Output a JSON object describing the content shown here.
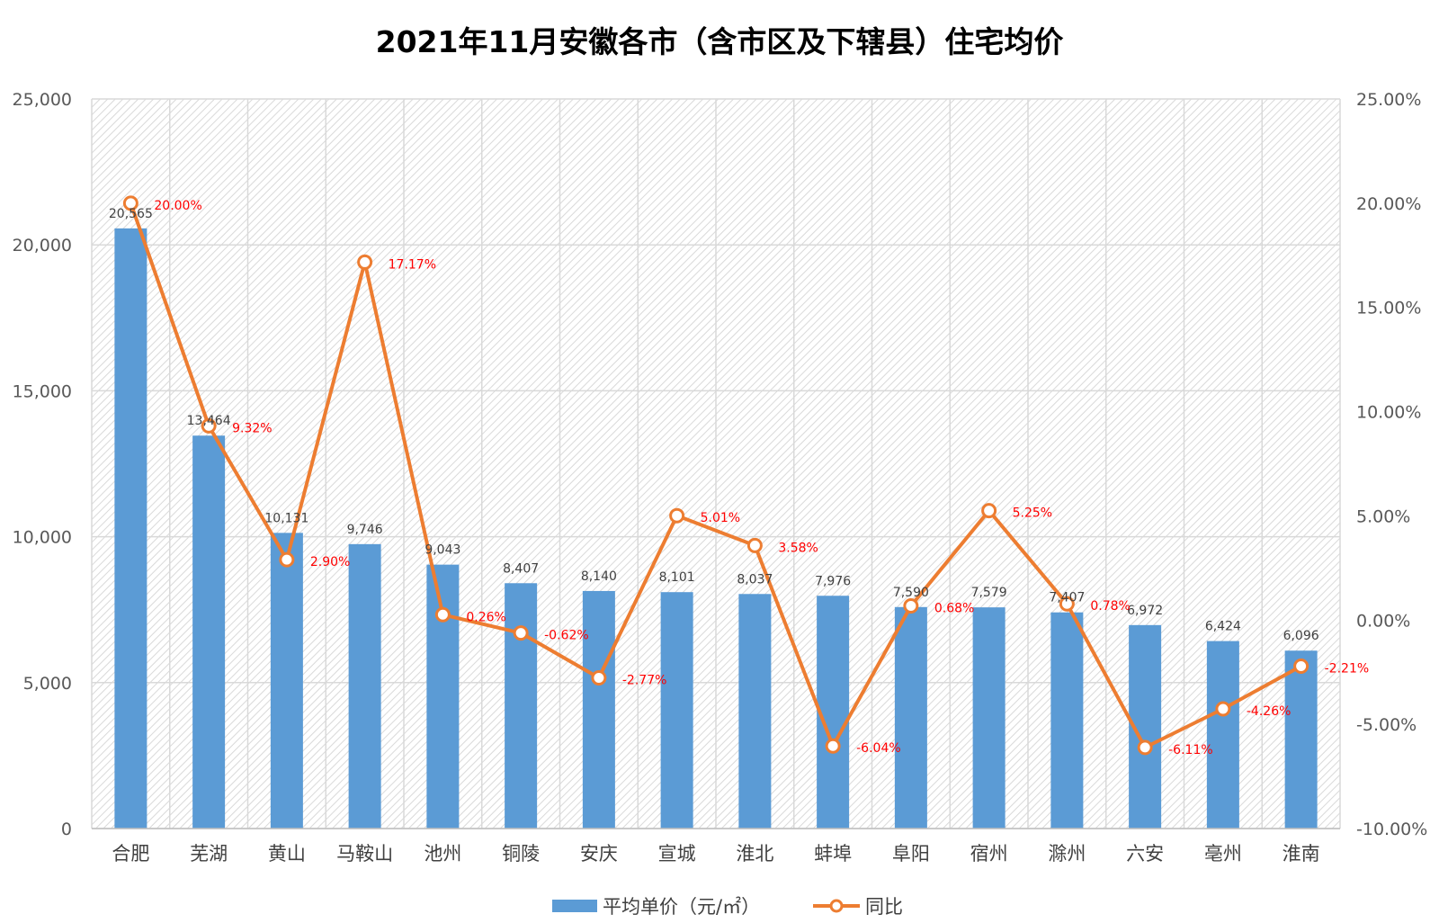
{
  "chart_data": {
    "type": "bar",
    "title": "2021年11月安徽各市（含市区及下辖县）住宅均价",
    "categories": [
      "合肥",
      "芜湖",
      "黄山",
      "马鞍山",
      "池州",
      "铜陵",
      "安庆",
      "宣城",
      "淮北",
      "蚌埠",
      "阜阳",
      "宿州",
      "滁州",
      "六安",
      "亳州",
      "淮南"
    ],
    "series": [
      {
        "name": "平均单价（元/㎡）",
        "type": "bar",
        "axis": "left",
        "color": "#5b9bd5",
        "values": [
          20565,
          13464,
          10131,
          9746,
          9043,
          8407,
          8140,
          8101,
          8037,
          7976,
          7590,
          7579,
          7407,
          6972,
          6424,
          6096
        ],
        "labels": [
          "20,565",
          "13,464",
          "10,131",
          "9,746",
          "9,043",
          "8,407",
          "8,140",
          "8,101",
          "8,037",
          "7,976",
          "7,590",
          "7,579",
          "7,407",
          "6,972",
          "6,424",
          "6,096"
        ]
      },
      {
        "name": "同比",
        "type": "line",
        "axis": "right",
        "color": "#ed7d31",
        "label_color": "#ff0000",
        "values": [
          20.0,
          9.32,
          2.9,
          17.17,
          0.26,
          -0.62,
          -2.77,
          5.01,
          3.58,
          -6.04,
          0.68,
          5.25,
          0.78,
          -6.11,
          -4.26,
          -2.21
        ],
        "labels": [
          "20.00%",
          "9.32%",
          "2.90%",
          "17.17%",
          "0.26%",
          "-0.62%",
          "-2.77%",
          "5.01%",
          "3.58%",
          "-6.04%",
          "0.68%",
          "5.25%",
          "0.78%",
          "-6.11%",
          "-4.26%",
          "-2.21%"
        ]
      }
    ],
    "y_left": {
      "ylim": [
        0,
        25000
      ],
      "ticks": [
        "0",
        "5,000",
        "10,000",
        "15,000",
        "20,000",
        "25,000"
      ]
    },
    "y_right": {
      "ylim": [
        -10,
        25
      ],
      "ticks": [
        "-10.00%",
        "-5.00%",
        "0.00%",
        "5.00%",
        "10.00%",
        "15.00%",
        "20.00%",
        "25.00%"
      ]
    },
    "grid": true,
    "legend_position": "bottom"
  }
}
